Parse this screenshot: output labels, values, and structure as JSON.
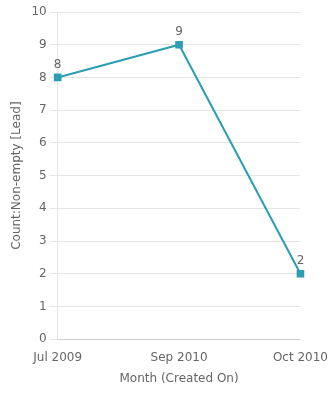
{
  "chart_data": {
    "type": "line",
    "xlabel": "Month (Created On)",
    "ylabel": "Count:Non-empty [Lead]",
    "categories": [
      "Jul 2009",
      "Sep 2010",
      "Oct 2010"
    ],
    "values": [
      8,
      9,
      2
    ],
    "color": "#2B9EB3",
    "marker": "square",
    "ylim": [
      0,
      10
    ],
    "yticks": [
      0,
      1,
      2,
      3,
      4,
      5,
      6,
      7,
      8,
      9,
      10
    ],
    "grid": true,
    "data_labels": true
  }
}
